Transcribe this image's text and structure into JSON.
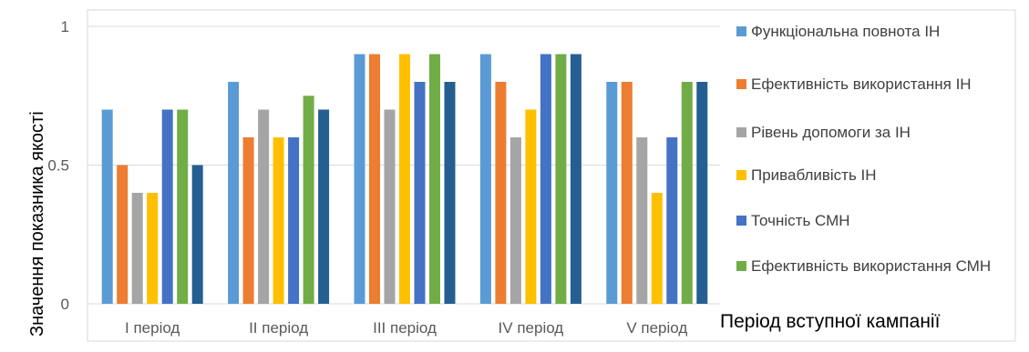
{
  "chart_data": {
    "type": "bar",
    "categories": [
      "I період",
      "II період",
      "III період",
      "IV період",
      "V період"
    ],
    "series": [
      {
        "name": "Функціональна повнота ІН",
        "color": "#5B9BD5",
        "values": [
          0.7,
          0.8,
          0.9,
          0.9,
          0.8
        ]
      },
      {
        "name": "Ефективність використання ІН",
        "color": "#ED7D31",
        "values": [
          0.5,
          0.6,
          0.9,
          0.8,
          0.8
        ]
      },
      {
        "name": "Рівень допомоги за ІН",
        "color": "#A5A5A5",
        "values": [
          0.4,
          0.7,
          0.7,
          0.6,
          0.6
        ]
      },
      {
        "name": "Привабливість ІН",
        "color": "#FFC000",
        "values": [
          0.4,
          0.6,
          0.9,
          0.7,
          0.4
        ]
      },
      {
        "name": "Точність СМН",
        "color": "#4472C4",
        "values": [
          0.7,
          0.6,
          0.8,
          0.9,
          0.6
        ]
      },
      {
        "name": "Ефективність використання СМН",
        "color": "#70AD47",
        "values": [
          0.7,
          0.75,
          0.9,
          0.9,
          0.8
        ]
      },
      {
        "name": "",
        "color": "#255E91",
        "values": [
          0.5,
          0.7,
          0.8,
          0.9,
          0.8
        ]
      }
    ],
    "yticks": [
      "0",
      "0.5",
      "1"
    ],
    "ylim": [
      0,
      1
    ],
    "ylabel": "Значення показника якості",
    "xlabel": "Період вступної кампанії",
    "grid": true,
    "legend_position": "right"
  }
}
